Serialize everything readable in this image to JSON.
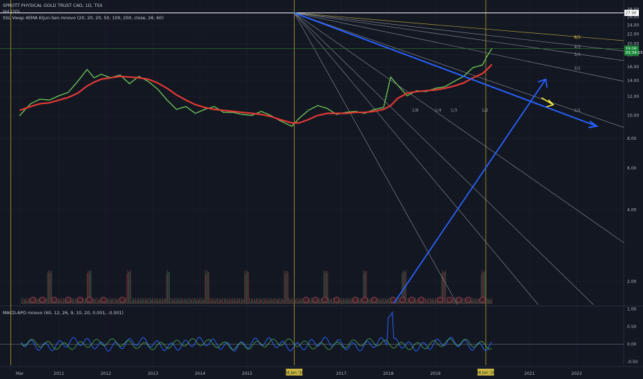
{
  "header": {
    "symbol_line": "SPROTT PHYSICAL GOLD TRUST CAD, 1D, TSX",
    "vol_line": "Vol (20)",
    "ssl_line": "SSL Vwap 4EMA Kijun-Sen mnovo (20, 20, 20, 50, 100, 200, close, 26, 60)",
    "macd_line": "MACD-APO mnovo (60, 12, 26, 9, 10, 20, 0.001, -0.001)"
  },
  "colors": {
    "background": "#131722",
    "grid": "#1e222d",
    "price": "#4caf50",
    "ema": "#e53935",
    "gann_blue": "#2962ff",
    "vertical": "#b8a530",
    "arrow_yellow": "#f5ec42"
  },
  "chart_data": [
    {
      "type": "line",
      "panel": "price",
      "y_scale": "log",
      "ylim": [
        1.6,
        29
      ],
      "xlim": [
        2009.75,
        2023.0
      ],
      "yticks": [
        "28.00",
        "26.00",
        "24.00",
        "22.00",
        "20.00",
        "18.00",
        "16.00",
        "14.00",
        "12.00",
        "10.00",
        "8.00",
        "6.00",
        "4.00",
        "2.00"
      ],
      "ytick_values": [
        28,
        26,
        24,
        22,
        20,
        18,
        16,
        14,
        12,
        10,
        8,
        6,
        4,
        2
      ],
      "xticks": [
        "Mar",
        "2011",
        "2012",
        "2013",
        "2014",
        "2015",
        "2016",
        "2017",
        "2018",
        "2019",
        "2020",
        "2021",
        "2022"
      ],
      "xtick_values": [
        2010.17,
        2011.0,
        2012.0,
        2013.0,
        2014.0,
        2015.0,
        2016.0,
        2017.0,
        2018.0,
        2019.0,
        2020.0,
        2021.0,
        2022.0
      ],
      "highlight_x_labels": [
        {
          "text": "04 Jan '16",
          "x": 2016.0
        },
        {
          "text": "28 Jan '20",
          "x": 2020.07
        }
      ],
      "price_labels": [
        {
          "text": "27.00",
          "value": 27.0,
          "style": "white"
        },
        {
          "text": "19.08",
          "value": 19.08,
          "style": "green"
        },
        {
          "text": "03:34:15",
          "value": 18.4,
          "style": "green"
        }
      ],
      "series": [
        {
          "x": [
            2010.17,
            2010.4,
            2010.6,
            2010.8,
            2011.0,
            2011.2,
            2011.4,
            2011.6,
            2011.75,
            2011.9,
            2012.1,
            2012.3,
            2012.5,
            2012.7,
            2012.9,
            2013.1,
            2013.3,
            2013.5,
            2013.7,
            2013.9,
            2014.1,
            2014.3,
            2014.5,
            2014.7,
            2014.9,
            2015.1,
            2015.3,
            2015.5,
            2015.7,
            2015.95,
            2016.1,
            2016.3,
            2016.5,
            2016.7,
            2016.9,
            2017.1,
            2017.3,
            2017.5,
            2017.7,
            2017.9,
            2018.05,
            2018.2,
            2018.4,
            2018.6,
            2018.8,
            2019.0,
            2019.2,
            2019.4,
            2019.6,
            2019.8,
            2020.0,
            2020.1,
            2020.2
          ],
          "values": [
            10.0,
            11.2,
            11.7,
            11.6,
            12.1,
            12.5,
            13.9,
            15.6,
            14.4,
            14.9,
            14.4,
            14.8,
            13.6,
            14.6,
            13.9,
            12.9,
            11.6,
            10.6,
            10.9,
            10.2,
            10.6,
            10.9,
            10.3,
            10.3,
            10.1,
            10.0,
            10.4,
            10.0,
            9.5,
            9.0,
            9.7,
            10.5,
            11.0,
            10.7,
            10.1,
            10.3,
            10.4,
            10.2,
            10.6,
            10.8,
            14.5,
            13.4,
            12.1,
            12.7,
            12.6,
            13.0,
            13.2,
            13.9,
            14.6,
            15.9,
            16.3,
            17.8,
            19.1
          ]
        },
        {
          "x": [
            2010.17,
            2010.4,
            2010.6,
            2010.8,
            2011.0,
            2011.2,
            2011.4,
            2011.6,
            2011.75,
            2011.9,
            2012.1,
            2012.3,
            2012.5,
            2012.7,
            2012.9,
            2013.1,
            2013.3,
            2013.5,
            2013.7,
            2013.9,
            2014.1,
            2014.3,
            2014.5,
            2014.7,
            2014.9,
            2015.1,
            2015.3,
            2015.5,
            2015.7,
            2015.95,
            2016.1,
            2016.3,
            2016.5,
            2016.7,
            2016.9,
            2017.1,
            2017.3,
            2017.5,
            2017.7,
            2017.9,
            2018.05,
            2018.2,
            2018.4,
            2018.6,
            2018.8,
            2019.0,
            2019.2,
            2019.4,
            2019.6,
            2019.8,
            2020.0,
            2020.1,
            2020.2
          ],
          "values": [
            10.5,
            10.9,
            11.2,
            11.3,
            11.6,
            11.9,
            12.4,
            13.3,
            13.8,
            14.2,
            14.4,
            14.6,
            14.5,
            14.4,
            14.2,
            13.7,
            13.0,
            12.2,
            11.6,
            11.1,
            10.8,
            10.6,
            10.5,
            10.4,
            10.3,
            10.2,
            10.1,
            9.9,
            9.6,
            9.3,
            9.3,
            9.6,
            10.0,
            10.2,
            10.2,
            10.2,
            10.3,
            10.3,
            10.4,
            10.6,
            11.0,
            11.8,
            12.4,
            12.6,
            12.7,
            12.8,
            13.0,
            13.3,
            13.7,
            14.4,
            15.0,
            15.6,
            16.4
          ]
        }
      ],
      "gann_labels": [
        "8/1",
        "4/1",
        "3/1",
        "2/1",
        "1/8",
        "1/4",
        "1/3",
        "1/2",
        "1/1"
      ]
    },
    {
      "type": "line",
      "panel": "macd",
      "ylim": [
        -0.6,
        1.05
      ],
      "yticks": [
        "1.00",
        "0.50",
        "0.00",
        "-0.50"
      ],
      "ytick_values": [
        1.0,
        0.5,
        0.0,
        -0.5
      ]
    }
  ]
}
